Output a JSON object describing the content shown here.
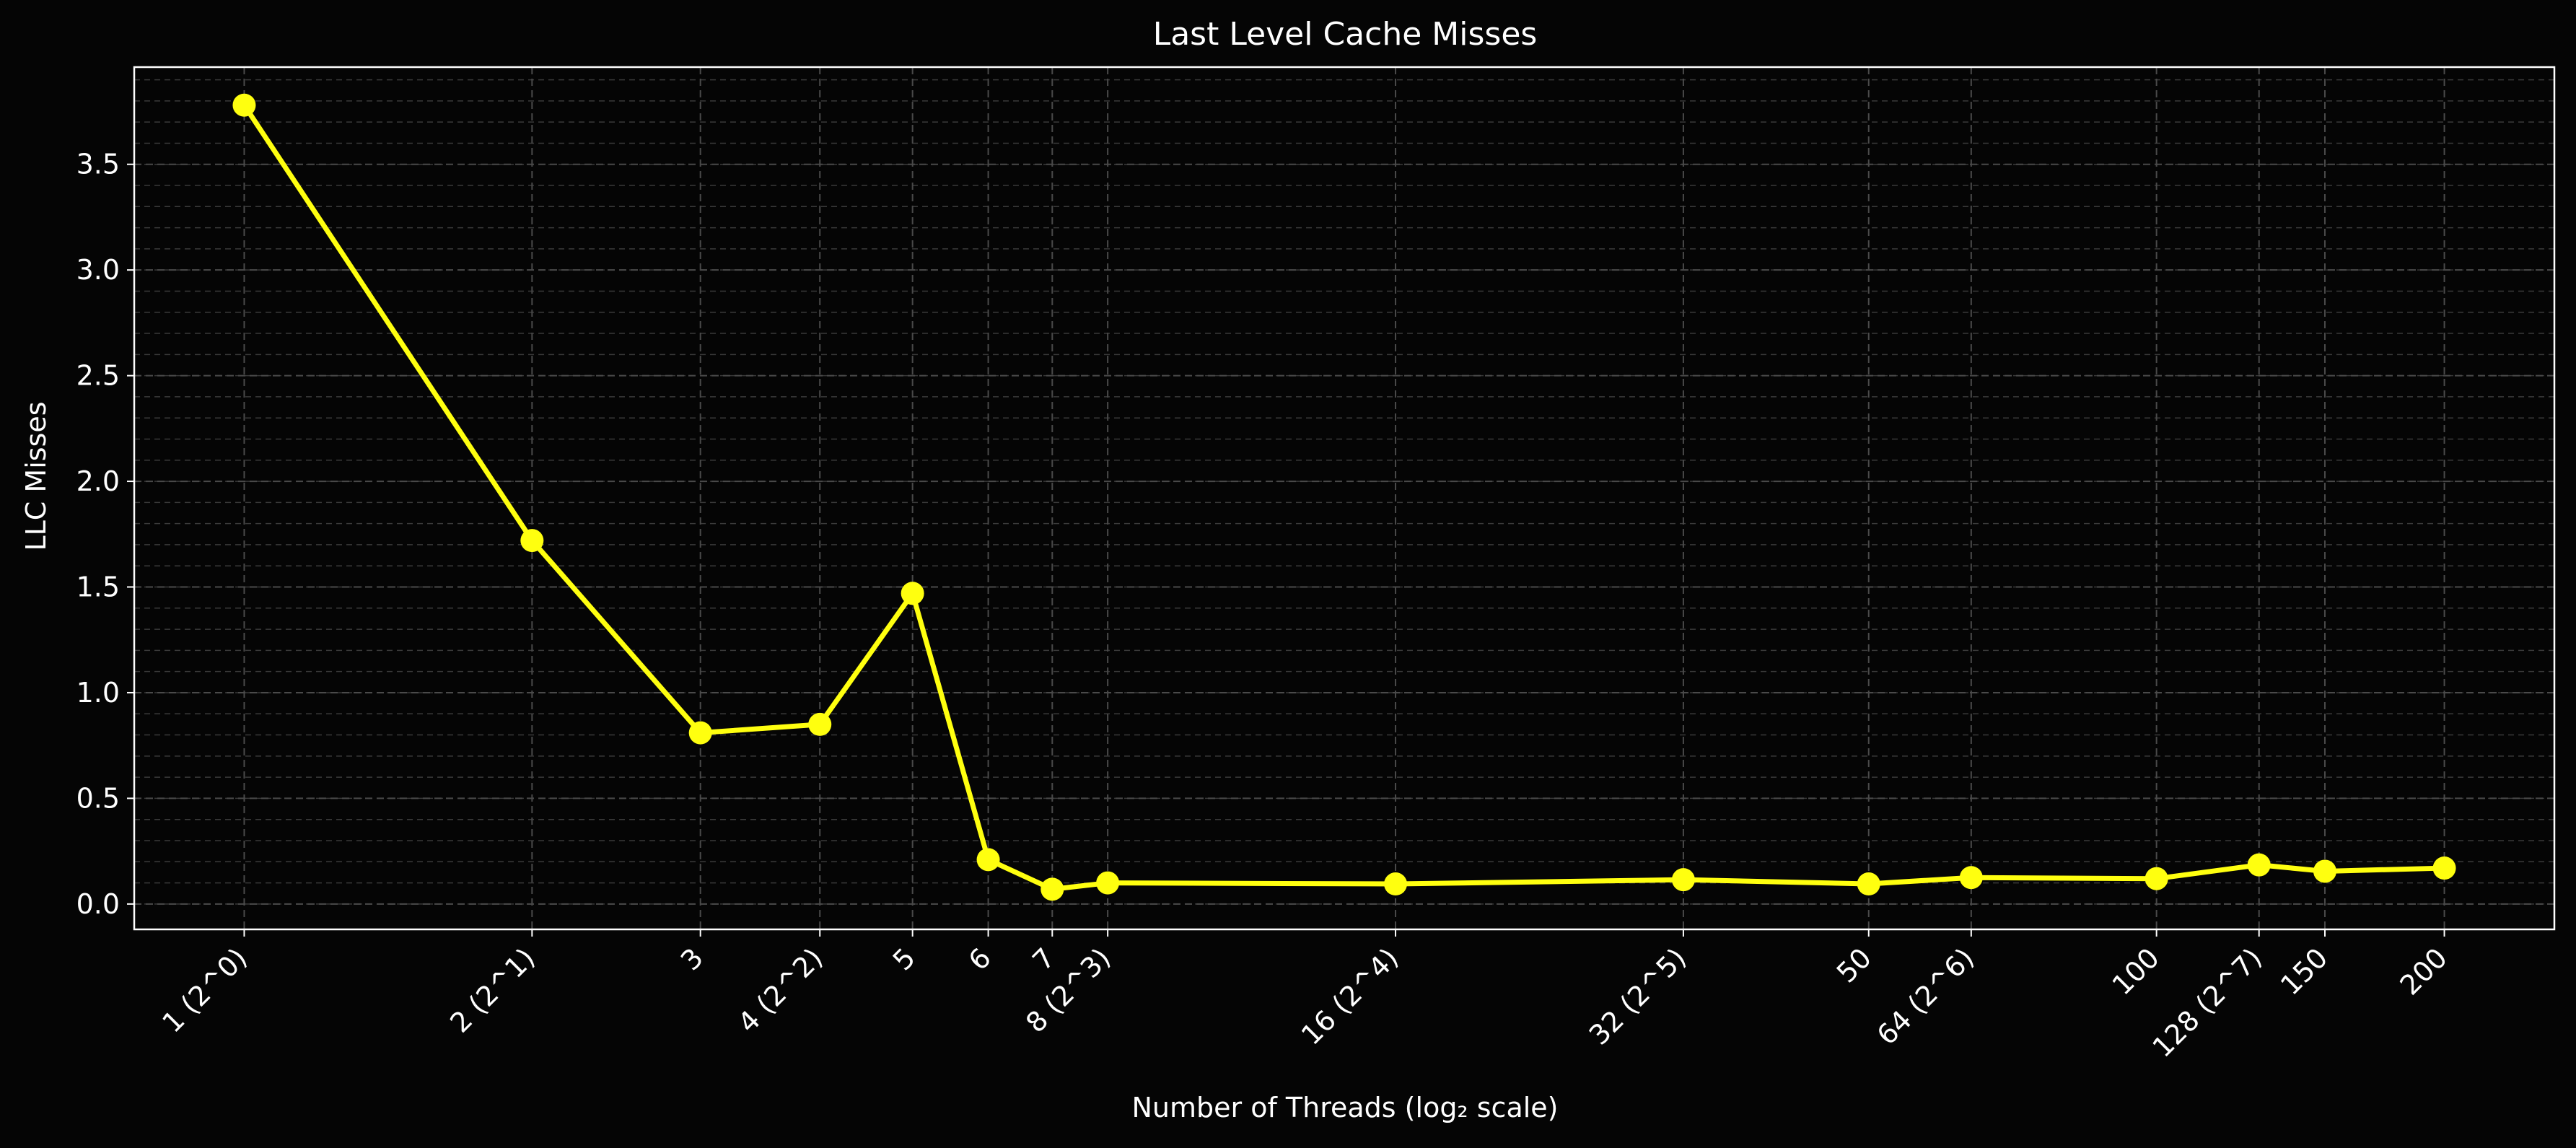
{
  "chart_data": {
    "type": "line",
    "title": "Last Level Cache Misses",
    "xlabel": "Number of Threads (log₂ scale)",
    "ylabel": "LLC Misses",
    "x_scale": "log2",
    "x_tick_labels": [
      "1 (2^0)",
      "2 (2^1)",
      "3",
      "4 (2^2)",
      "5",
      "6",
      "7",
      "8 (2^3)",
      "16 (2^4)",
      "32 (2^5)",
      "50",
      "64 (2^6)",
      "100",
      "128 (2^7)",
      "150",
      "200"
    ],
    "x": [
      1,
      2,
      3,
      4,
      5,
      6,
      7,
      8,
      16,
      32,
      50,
      64,
      100,
      128,
      150,
      200
    ],
    "series": [
      {
        "values": [
          3.78,
          1.72,
          0.81,
          0.85,
          1.47,
          0.21,
          0.07,
          0.1,
          0.095,
          0.115,
          0.095,
          0.125,
          0.12,
          0.185,
          0.155,
          0.17
        ]
      }
    ],
    "y_ticks": [
      "0.0",
      "0.5",
      "1.0",
      "1.5",
      "2.0",
      "2.5",
      "3.0",
      "3.5"
    ],
    "ylim": [
      -0.12,
      3.96
    ],
    "grid": true,
    "colors": {
      "background": "#050505",
      "line": "#ffff0f",
      "marker": "#ffff0f",
      "grid": "#3a3a3a",
      "axes": "#ffffff",
      "text": "#ffffff"
    }
  }
}
